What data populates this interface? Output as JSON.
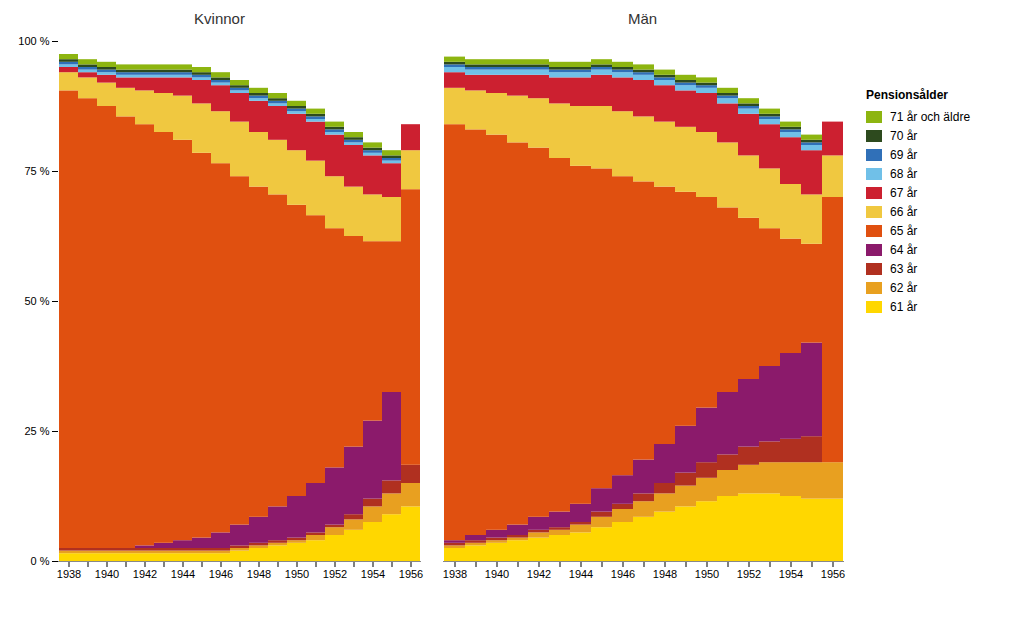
{
  "chart_data": [
    {
      "type": "bar",
      "title": "Kvinnor",
      "stacked": true,
      "grid": false,
      "categories": [
        "1938",
        null,
        "1940",
        null,
        "1942",
        null,
        "1944",
        null,
        "1946",
        null,
        "1948",
        null,
        "1950",
        null,
        "1952",
        null,
        "1954",
        null,
        "1956"
      ],
      "ylim": [
        0,
        100
      ],
      "yticks": [
        {
          "value": 0,
          "label": "0 %"
        },
        {
          "value": 25,
          "label": "25 %"
        },
        {
          "value": 50,
          "label": "50 %"
        },
        {
          "value": 75,
          "label": "75 %"
        },
        {
          "value": 100,
          "label": "100 %"
        }
      ],
      "series": [
        {
          "name": "61 år",
          "color": "#FFD700",
          "values": [
            1.5,
            1.5,
            1.5,
            1.5,
            1.5,
            1.5,
            1.5,
            1.5,
            1.5,
            2.0,
            2.5,
            3.0,
            3.5,
            4.0,
            5.0,
            6.0,
            7.5,
            9.0,
            10.5
          ]
        },
        {
          "name": "62 år",
          "color": "#E8A020",
          "values": [
            0.5,
            0.5,
            0.5,
            0.5,
            0.5,
            0.5,
            0.5,
            0.5,
            0.5,
            0.5,
            0.5,
            0.5,
            0.5,
            1.0,
            1.5,
            2.0,
            3.0,
            4.0,
            4.5
          ]
        },
        {
          "name": "63 år",
          "color": "#B03020",
          "values": [
            0.5,
            0.5,
            0.5,
            0.5,
            0.5,
            0.5,
            0.5,
            0.5,
            0.5,
            0.5,
            0.5,
            0.5,
            0.5,
            0.5,
            0.5,
            1.0,
            1.5,
            2.5,
            3.5
          ]
        },
        {
          "name": "64 år",
          "color": "#8B1A6B",
          "values": [
            0.0,
            0.0,
            0.0,
            0.0,
            0.5,
            1.0,
            1.5,
            2.0,
            3.0,
            4.0,
            5.0,
            6.5,
            8.0,
            9.5,
            11.0,
            13.0,
            15.0,
            17.0,
            0.0
          ]
        },
        {
          "name": "65 år",
          "color": "#E05010",
          "values": [
            88.0,
            86.5,
            85.0,
            83.0,
            81.0,
            79.0,
            77.0,
            74.0,
            71.0,
            67.0,
            63.5,
            60.0,
            56.0,
            51.5,
            46.0,
            40.5,
            34.5,
            29.0,
            53.0
          ]
        },
        {
          "name": "66 år",
          "color": "#F0C840",
          "values": [
            3.5,
            4.0,
            4.5,
            5.5,
            6.5,
            7.5,
            8.5,
            9.5,
            10.0,
            10.5,
            10.5,
            10.5,
            10.5,
            10.5,
            10.0,
            9.5,
            9.0,
            8.5,
            7.5
          ]
        },
        {
          "name": "67 år",
          "color": "#CC2030",
          "values": [
            1.0,
            1.0,
            1.5,
            2.0,
            2.5,
            3.0,
            3.5,
            4.5,
            5.0,
            5.5,
            6.0,
            6.5,
            7.0,
            7.5,
            8.0,
            8.0,
            7.5,
            6.5,
            5.0
          ]
        },
        {
          "name": "68 år",
          "color": "#70C0E8",
          "values": [
            0.5,
            0.5,
            0.5,
            0.5,
            0.5,
            0.5,
            0.5,
            0.5,
            0.5,
            0.5,
            0.5,
            0.5,
            0.5,
            0.5,
            0.5,
            0.5,
            0.5,
            0.5,
            0.0
          ]
        },
        {
          "name": "69 år",
          "color": "#3070B8",
          "values": [
            0.5,
            0.5,
            0.5,
            0.5,
            0.5,
            0.5,
            0.5,
            0.5,
            0.5,
            0.5,
            0.5,
            0.5,
            0.5,
            0.5,
            0.5,
            0.5,
            0.5,
            0.5,
            0.0
          ]
        },
        {
          "name": "70 år",
          "color": "#2D4A1E",
          "values": [
            0.5,
            0.5,
            0.5,
            0.5,
            0.5,
            0.5,
            0.5,
            0.5,
            0.5,
            0.5,
            0.5,
            0.5,
            0.5,
            0.5,
            0.5,
            0.5,
            0.5,
            0.5,
            0.0
          ]
        },
        {
          "name": "71 år och äldre",
          "color": "#8DB510",
          "values": [
            1.0,
            1.0,
            1.0,
            1.0,
            1.0,
            1.0,
            1.0,
            1.0,
            1.0,
            1.0,
            1.0,
            1.0,
            1.0,
            1.0,
            1.0,
            1.0,
            1.0,
            1.0,
            0.0
          ]
        }
      ]
    },
    {
      "type": "bar",
      "title": "Män",
      "stacked": true,
      "grid": false,
      "tick_labels": "x",
      "legend": "right",
      "legend_title": "Pensionsålder",
      "categories": [
        "1938",
        null,
        "1940",
        null,
        "1942",
        null,
        "1944",
        null,
        "1946",
        null,
        "1948",
        null,
        "1950",
        null,
        "1952",
        null,
        "1954",
        null,
        "1956"
      ],
      "ylim": [
        0,
        100
      ],
      "yticks": [
        0,
        25,
        50,
        75,
        100
      ],
      "series": [
        {
          "name": "61 år",
          "color": "#FFD700",
          "values": [
            2.5,
            3.0,
            3.5,
            4.0,
            4.5,
            5.0,
            5.5,
            6.5,
            7.5,
            8.5,
            9.5,
            10.5,
            11.5,
            12.5,
            13.0,
            13.0,
            12.5,
            12.0,
            12.0
          ]
        },
        {
          "name": "62 år",
          "color": "#E8A020",
          "values": [
            0.5,
            0.5,
            0.5,
            0.5,
            1.0,
            1.0,
            1.5,
            2.0,
            2.5,
            3.0,
            3.5,
            4.0,
            4.5,
            5.0,
            5.5,
            6.0,
            6.5,
            7.0,
            7.0
          ]
        },
        {
          "name": "63 år",
          "color": "#B03020",
          "values": [
            0.5,
            0.5,
            0.5,
            0.5,
            0.5,
            0.5,
            0.5,
            1.0,
            1.0,
            1.5,
            2.0,
            2.5,
            3.0,
            3.0,
            3.5,
            4.0,
            4.5,
            5.0,
            0.0
          ]
        },
        {
          "name": "64 år",
          "color": "#8B1A6B",
          "values": [
            0.5,
            1.0,
            1.5,
            2.0,
            2.5,
            3.0,
            3.5,
            4.5,
            5.5,
            6.5,
            7.5,
            9.0,
            10.5,
            12.0,
            13.0,
            14.5,
            16.5,
            18.0,
            0.0
          ]
        },
        {
          "name": "65 år",
          "color": "#E05010",
          "values": [
            80.0,
            78.0,
            76.0,
            73.5,
            71.0,
            68.0,
            65.0,
            61.5,
            57.5,
            53.5,
            49.5,
            45.0,
            40.5,
            35.5,
            31.0,
            26.5,
            22.0,
            19.0,
            51.0
          ]
        },
        {
          "name": "66 år",
          "color": "#F0C840",
          "values": [
            7.0,
            7.5,
            8.0,
            9.0,
            9.5,
            10.5,
            11.5,
            12.0,
            12.5,
            12.5,
            12.5,
            12.5,
            12.5,
            12.5,
            12.0,
            11.5,
            10.5,
            9.5,
            8.0
          ]
        },
        {
          "name": "67 år",
          "color": "#CC2030",
          "values": [
            3.0,
            3.0,
            3.5,
            4.0,
            4.5,
            5.0,
            5.5,
            6.0,
            6.5,
            7.0,
            7.0,
            7.0,
            7.5,
            7.5,
            8.0,
            8.5,
            9.0,
            8.5,
            6.5
          ]
        },
        {
          "name": "68 år",
          "color": "#70C0E8",
          "values": [
            1.0,
            1.0,
            1.0,
            1.0,
            1.0,
            1.0,
            1.0,
            1.0,
            1.0,
            1.0,
            1.0,
            1.0,
            1.0,
            1.0,
            1.0,
            1.0,
            1.0,
            1.0,
            0.0
          ]
        },
        {
          "name": "69 år",
          "color": "#3070B8",
          "values": [
            0.5,
            0.5,
            0.5,
            0.5,
            0.5,
            0.5,
            0.5,
            0.5,
            0.5,
            0.5,
            0.5,
            0.5,
            0.5,
            0.5,
            0.5,
            0.5,
            0.5,
            0.5,
            0.0
          ]
        },
        {
          "name": "70 år",
          "color": "#2D4A1E",
          "values": [
            0.5,
            0.5,
            0.5,
            0.5,
            0.5,
            0.5,
            0.5,
            0.5,
            0.5,
            0.5,
            0.5,
            0.5,
            0.5,
            0.5,
            0.5,
            0.5,
            0.5,
            0.5,
            0.0
          ]
        },
        {
          "name": "71 år och äldre",
          "color": "#8DB510",
          "values": [
            1.0,
            1.0,
            1.0,
            1.0,
            1.0,
            1.0,
            1.0,
            1.0,
            1.0,
            1.0,
            1.0,
            1.0,
            1.0,
            1.0,
            1.0,
            1.0,
            1.0,
            1.0,
            0.0
          ]
        }
      ]
    }
  ]
}
